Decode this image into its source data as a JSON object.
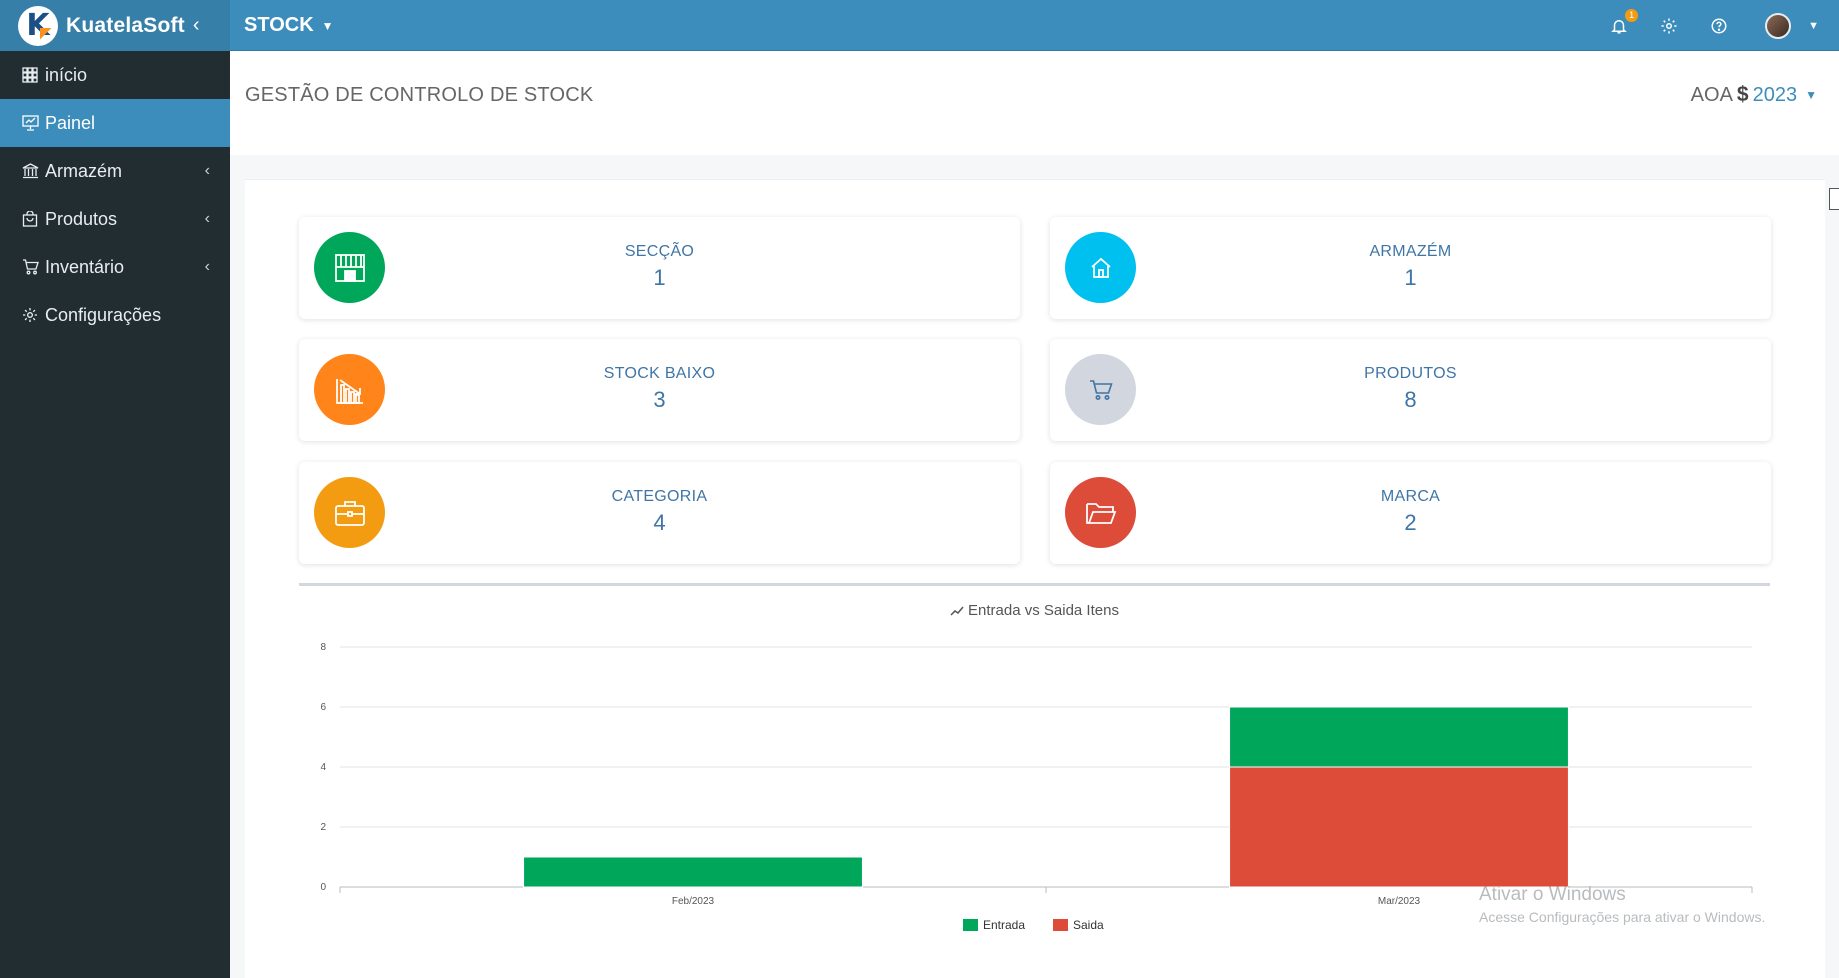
{
  "brand": {
    "name": "KuatelaSoft",
    "logo_letter": "K"
  },
  "module": {
    "label": "STOCK"
  },
  "topbar": {
    "notification_count": "1"
  },
  "sidebar": {
    "items": [
      {
        "label": "início",
        "icon": "grid-icon"
      },
      {
        "label": "Painel",
        "icon": "dashboard-icon",
        "active": true
      },
      {
        "label": "Armazém",
        "icon": "bank-icon"
      },
      {
        "label": "Produtos",
        "icon": "bag-icon"
      },
      {
        "label": "Inventário",
        "icon": "cart-icon"
      },
      {
        "label": "Configurações",
        "icon": "gear-icon"
      }
    ]
  },
  "header": {
    "title": "GESTÃO DE CONTROLO DE STOCK",
    "currency": "AOA",
    "currency_symbol": "$",
    "year": "2023"
  },
  "cards": [
    {
      "label": "SECÇÃO",
      "value": "1",
      "color": "#00a65a",
      "icon": "building-icon"
    },
    {
      "label": "ARMAZÉM",
      "value": "1",
      "color": "#00c0ef",
      "icon": "home-icon"
    },
    {
      "label": "STOCK BAIXO",
      "value": "3",
      "color": "#ff851b",
      "icon": "chart-down-icon"
    },
    {
      "label": "PRODUTOS",
      "value": "8",
      "color": "#d2d6de",
      "icon": "cart-icon"
    },
    {
      "label": "CATEGORIA",
      "value": "4",
      "color": "#f39c12",
      "icon": "briefcase-icon"
    },
    {
      "label": "MARCA",
      "value": "2",
      "color": "#dd4b39",
      "icon": "folder-icon"
    }
  ],
  "chart_data": {
    "type": "bar",
    "stacked": true,
    "title": "Entrada vs Saida Itens",
    "categories": [
      "Feb/2023",
      "Mar/2023"
    ],
    "series": [
      {
        "name": "Entrada",
        "values": [
          1,
          2
        ],
        "color": "#00a65a"
      },
      {
        "name": "Saida",
        "values": [
          0,
          4
        ],
        "color": "#dd4b39"
      }
    ],
    "ylim": [
      0,
      8
    ],
    "yticks": [
      0,
      2,
      4,
      6,
      8
    ],
    "grid": true,
    "legend": "bottom"
  },
  "watermark": {
    "line1": "Ativar o Windows",
    "line2": "Acesse Configurações para ativar o Windows."
  }
}
